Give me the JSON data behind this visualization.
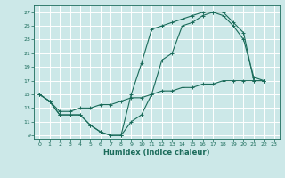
{
  "xlabel": "Humidex (Indice chaleur)",
  "bg_color": "#cce8e8",
  "grid_color": "#ffffff",
  "line_color": "#1a6b5a",
  "xlim": [
    -0.5,
    23.5
  ],
  "ylim": [
    8.5,
    28
  ],
  "xticks": [
    0,
    1,
    2,
    3,
    4,
    5,
    6,
    7,
    8,
    9,
    10,
    11,
    12,
    13,
    14,
    15,
    16,
    17,
    18,
    19,
    20,
    21,
    22,
    23
  ],
  "yticks": [
    9,
    11,
    13,
    15,
    17,
    19,
    21,
    23,
    25,
    27
  ],
  "line1_x": [
    0,
    1,
    2,
    3,
    4,
    5,
    6,
    7,
    8,
    9,
    10,
    11,
    12,
    13,
    14,
    15,
    16,
    17,
    18,
    19,
    20,
    21,
    22
  ],
  "line1_y": [
    15,
    14,
    12,
    12,
    12,
    10.5,
    9.5,
    9,
    9,
    11,
    12,
    15,
    20,
    21,
    25,
    25.5,
    26.5,
    27,
    27,
    25.5,
    24,
    17,
    17
  ],
  "line2_x": [
    0,
    1,
    2,
    3,
    4,
    5,
    6,
    7,
    8,
    9,
    10,
    11,
    12,
    13,
    14,
    15,
    16,
    17,
    18,
    19,
    20,
    21,
    22
  ],
  "line2_y": [
    15,
    14,
    12,
    12,
    12,
    10.5,
    9.5,
    9,
    9,
    15,
    19.5,
    24.5,
    25,
    25.5,
    26,
    26.5,
    27,
    27,
    26.5,
    25,
    23,
    17.5,
    17
  ],
  "line3_x": [
    0,
    1,
    2,
    3,
    4,
    5,
    6,
    7,
    8,
    9,
    10,
    11,
    12,
    13,
    14,
    15,
    16,
    17,
    18,
    19,
    20,
    21,
    22
  ],
  "line3_y": [
    15,
    14,
    12.5,
    12.5,
    13,
    13,
    13.5,
    13.5,
    14,
    14.5,
    14.5,
    15,
    15.5,
    15.5,
    16,
    16,
    16.5,
    16.5,
    17,
    17,
    17,
    17,
    17
  ]
}
